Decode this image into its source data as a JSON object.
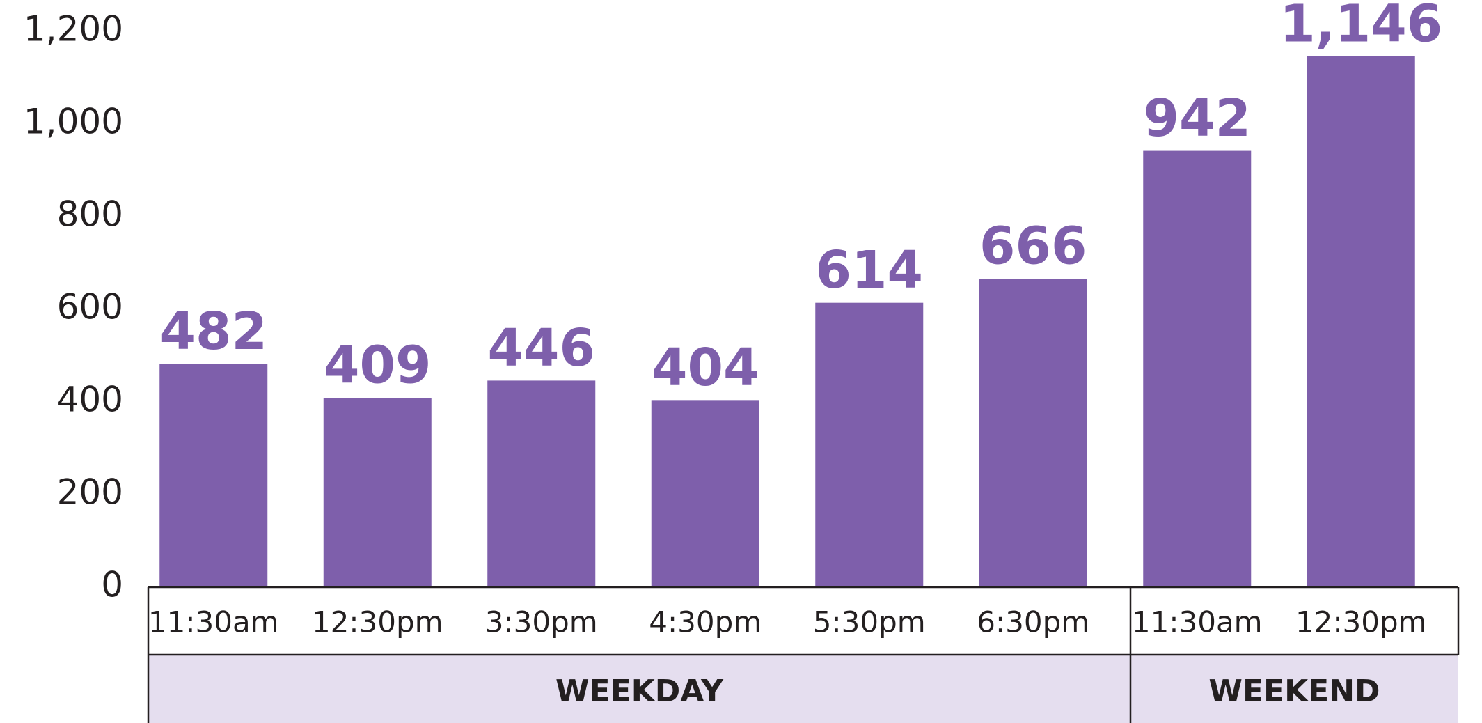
{
  "chart_data": {
    "type": "bar",
    "color": "#7e5fab",
    "ylim": [
      0,
      1200
    ],
    "yticks": [
      0,
      200,
      400,
      600,
      800,
      {
        "value": 1000,
        "label": "1,000"
      },
      {
        "value": 1200,
        "label": "1,200"
      }
    ],
    "groups": [
      {
        "name": "WEEKDAY",
        "categories": [
          "11:30am",
          "12:30pm",
          "3:30pm",
          "4:30pm",
          "5:30pm",
          "6:30pm"
        ],
        "values": [
          482,
          409,
          446,
          404,
          614,
          666
        ],
        "value_labels": [
          "482",
          "409",
          "446",
          "404",
          "614",
          "666"
        ]
      },
      {
        "name": "WEEKEND",
        "categories": [
          "11:30am",
          "12:30pm"
        ],
        "values": [
          942,
          1146
        ],
        "value_labels": [
          "942",
          "1,146"
        ]
      }
    ]
  }
}
